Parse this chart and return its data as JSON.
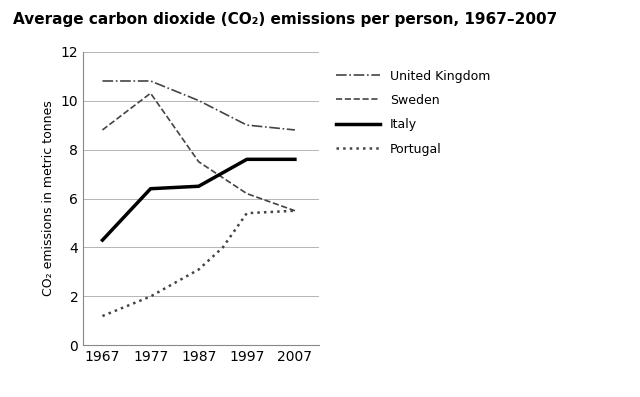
{
  "title": "Average carbon dioxide (CO₂) emissions per person, 1967–2007",
  "ylabel": "CO₂ emissions in metric tonnes",
  "years": [
    1967,
    1977,
    1987,
    1997,
    2007
  ],
  "uk": [
    10.8,
    10.8,
    10.0,
    9.0,
    8.8
  ],
  "sweden": [
    8.8,
    10.3,
    7.5,
    6.2,
    5.5
  ],
  "italy": [
    4.3,
    6.4,
    6.5,
    7.6,
    7.6
  ],
  "portugal": [
    1.2,
    2.0,
    3.1,
    4.0,
    5.4,
    5.5
  ],
  "portugal_years": [
    1967,
    1977,
    1987,
    1992,
    1997,
    2007
  ],
  "xlim": [
    1963,
    2012
  ],
  "ylim": [
    0,
    12
  ],
  "yticks": [
    0,
    2,
    4,
    6,
    8,
    10,
    12
  ],
  "xticks": [
    1967,
    1977,
    1987,
    1997,
    2007
  ],
  "uk_color": "#444444",
  "sweden_color": "#444444",
  "italy_color": "#000000",
  "portugal_color": "#444444",
  "legend_labels": [
    "United Kingdom",
    "Sweden",
    "Italy",
    "Portugal"
  ],
  "background_color": "#ffffff",
  "title_fontsize": 11,
  "label_fontsize": 9,
  "tick_fontsize": 10,
  "legend_fontsize": 9
}
